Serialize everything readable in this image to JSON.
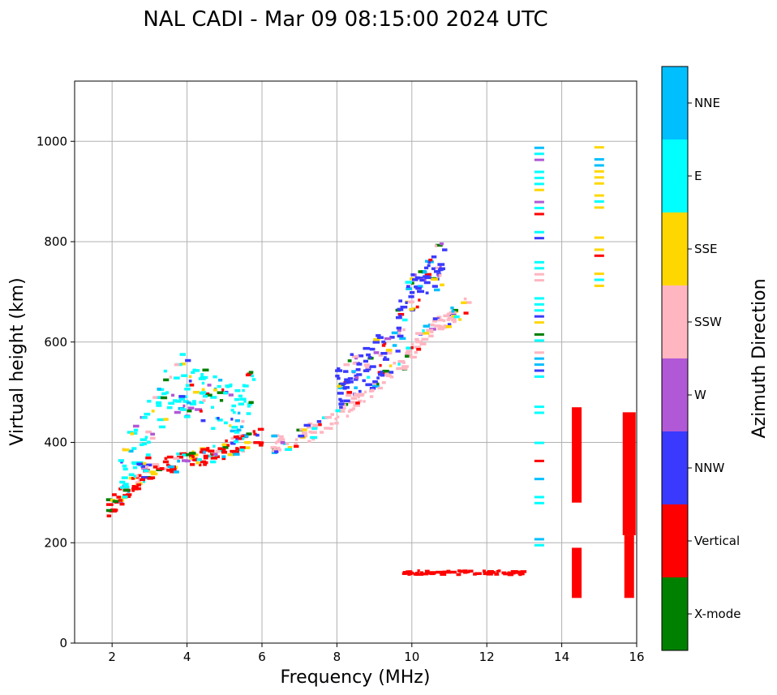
{
  "chart_data": {
    "type": "scatter",
    "title": "NAL CADI - Mar 09 08:15:00 2024 UTC",
    "xlabel": "Frequency (MHz)",
    "ylabel": "Virtual height (km)",
    "xlim": [
      1,
      16
    ],
    "ylim": [
      0,
      1120
    ],
    "xticks": [
      2,
      4,
      6,
      8,
      10,
      12,
      14,
      16
    ],
    "yticks": [
      0,
      200,
      400,
      600,
      800,
      1000
    ],
    "grid": true,
    "colorbar": {
      "title": "Azimuth Direction",
      "categories": [
        {
          "name": "X-mode",
          "color": "#008000"
        },
        {
          "name": "Vertical",
          "color": "#ff0000"
        },
        {
          "name": "NNW",
          "color": "#3a3aff"
        },
        {
          "name": "W",
          "color": "#b158d6"
        },
        {
          "name": "SSW",
          "color": "#ffb6c1"
        },
        {
          "name": "SSE",
          "color": "#ffd700"
        },
        {
          "name": "E",
          "color": "#00ffff"
        },
        {
          "name": "NNE",
          "color": "#00bfff"
        }
      ]
    },
    "traces": [
      {
        "name": "o-trace-low",
        "category": "Vertical",
        "points": [
          [
            1.9,
            270
          ],
          [
            2.1,
            280
          ],
          [
            2.3,
            295
          ],
          [
            2.5,
            310
          ],
          [
            2.8,
            330
          ],
          [
            3.1,
            345
          ],
          [
            3.5,
            355
          ],
          [
            4.0,
            362
          ],
          [
            4.5,
            372
          ],
          [
            5.0,
            385
          ],
          [
            5.5,
            398
          ],
          [
            6.0,
            410
          ]
        ]
      },
      {
        "name": "o-trace-mid",
        "category": "SSW",
        "points": [
          [
            6.3,
            395
          ],
          [
            6.8,
            405
          ],
          [
            7.3,
            420
          ],
          [
            7.8,
            440
          ],
          [
            8.3,
            470
          ],
          [
            8.8,
            500
          ],
          [
            9.3,
            530
          ],
          [
            9.8,
            560
          ],
          [
            10.3,
            610
          ],
          [
            10.8,
            640
          ],
          [
            11.3,
            660
          ],
          [
            11.6,
            680
          ]
        ]
      },
      {
        "name": "x-trace",
        "category": "E",
        "points": [
          [
            2.2,
            320
          ],
          [
            2.6,
            380
          ],
          [
            3.0,
            430
          ],
          [
            3.4,
            480
          ],
          [
            3.8,
            520
          ],
          [
            4.2,
            500
          ],
          [
            4.8,
            470
          ],
          [
            5.3,
            460
          ],
          [
            5.8,
            500
          ]
        ]
      },
      {
        "name": "spread-nnw",
        "category": "NNW",
        "points": [
          [
            8.0,
            500
          ],
          [
            8.5,
            540
          ],
          [
            9.0,
            560
          ],
          [
            9.5,
            600
          ],
          [
            10.0,
            700
          ],
          [
            10.5,
            740
          ],
          [
            10.9,
            760
          ]
        ]
      },
      {
        "name": "sporadic-e",
        "category": "Vertical",
        "points": [
          [
            9.8,
            140
          ],
          [
            10.5,
            140
          ],
          [
            11.0,
            140
          ],
          [
            11.5,
            140
          ],
          [
            12.0,
            140
          ],
          [
            12.5,
            140
          ],
          [
            13.0,
            140
          ]
        ]
      },
      {
        "name": "col-14.4",
        "category": "Vertical",
        "points": [
          [
            14.4,
            90
          ],
          [
            14.4,
            190
          ],
          [
            14.4,
            280
          ],
          [
            14.4,
            470
          ]
        ]
      },
      {
        "name": "col-15.8",
        "category": "Vertical",
        "points": [
          [
            15.8,
            90
          ],
          [
            15.8,
            215
          ],
          [
            15.8,
            460
          ]
        ]
      },
      {
        "name": "col-13.4",
        "category": "E",
        "points": [
          [
            13.4,
            195
          ],
          [
            13.4,
            385
          ],
          [
            13.4,
            560
          ],
          [
            13.4,
            750
          ],
          [
            13.4,
            1010
          ]
        ]
      },
      {
        "name": "col-15.0",
        "category": "SSE",
        "points": [
          [
            15.0,
            700
          ],
          [
            15.0,
            750
          ],
          [
            15.0,
            800
          ],
          [
            15.0,
            860
          ],
          [
            15.0,
            930
          ],
          [
            15.0,
            990
          ]
        ]
      }
    ]
  }
}
